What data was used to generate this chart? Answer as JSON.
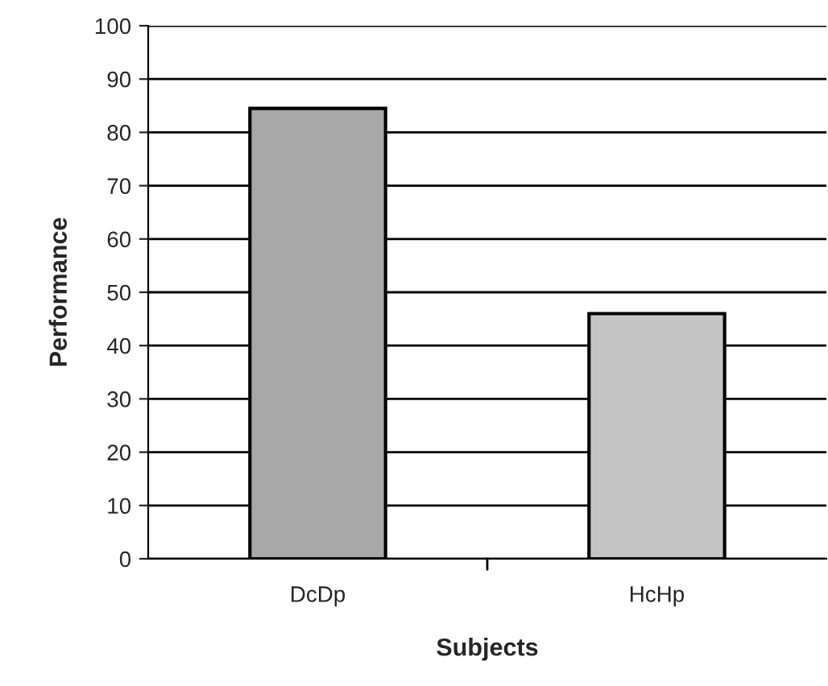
{
  "chart_data": {
    "type": "bar",
    "xlabel": "Subjects",
    "ylabel": "Performance",
    "categories": [
      "DcDp",
      "HcHp"
    ],
    "values": [
      84.5,
      46
    ],
    "colors": [
      "#a8a8a8",
      "#c4c4c4"
    ],
    "ylim": [
      0,
      100
    ],
    "yticks": [
      0,
      10,
      20,
      30,
      40,
      50,
      60,
      70,
      80,
      90,
      100
    ],
    "grid": "y"
  }
}
